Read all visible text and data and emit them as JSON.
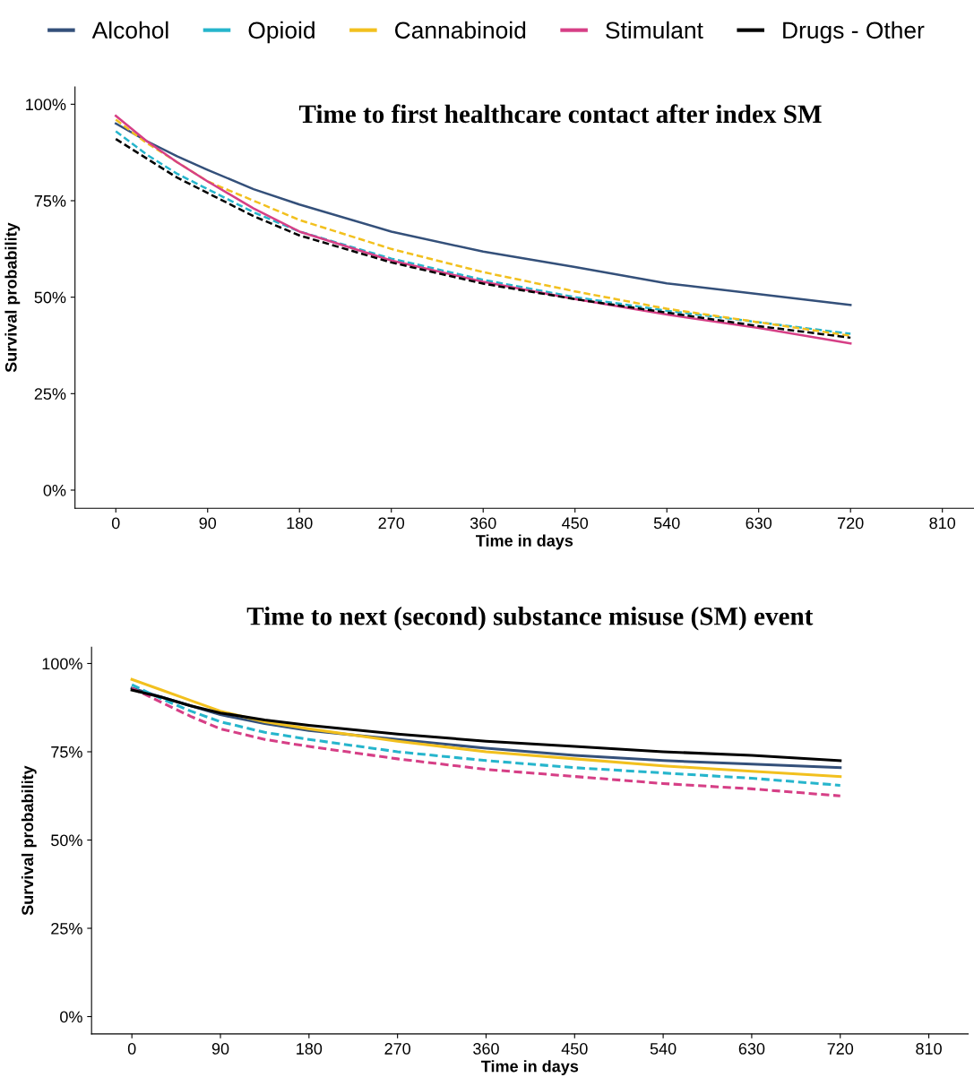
{
  "chart_data": [
    {
      "type": "line",
      "title": "Time to first healthcare contact after index SM",
      "xlabel": "Time in days",
      "ylabel": "Survival probability",
      "legend": "top",
      "grid": false,
      "marker": "none",
      "x": [
        0,
        30,
        60,
        90,
        135,
        180,
        270,
        360,
        450,
        540,
        630,
        720
      ],
      "xlim": [
        -40,
        841
      ],
      "xticks": [
        0,
        90,
        180,
        270,
        360,
        450,
        540,
        630,
        720,
        810
      ],
      "ylim": [
        -4.7,
        104.5
      ],
      "yticks": [
        {
          "value": 0,
          "label": "0%"
        },
        {
          "value": 25,
          "label": "25%"
        },
        {
          "value": 50,
          "label": "50%"
        },
        {
          "value": 75,
          "label": "75%"
        },
        {
          "value": 100,
          "label": "100%"
        }
      ],
      "series": [
        {
          "name": "Alcohol",
          "color": "#34507a",
          "line_style": "solid",
          "values": [
            95,
            90.5,
            86.5,
            83,
            78,
            74,
            67,
            61.8,
            57.8,
            53.6,
            50.8,
            48
          ]
        },
        {
          "name": "Opioid",
          "color": "#26b5cc",
          "line_style": "dashed",
          "values": [
            93,
            87,
            82,
            78,
            72,
            67,
            60,
            54.5,
            50,
            46.5,
            43.5,
            40.5
          ]
        },
        {
          "name": "Cannabinoid",
          "color": "#f2c01e",
          "line_style": "dashed",
          "values": [
            96,
            90,
            85,
            80,
            75,
            70,
            62.5,
            56.5,
            51.5,
            47,
            43.5,
            40
          ]
        },
        {
          "name": "Stimulant",
          "color": "#d63f86",
          "line_style": "solid",
          "values": [
            97,
            90.5,
            85,
            80,
            73,
            67,
            59.5,
            54,
            49.5,
            45.5,
            42,
            38
          ]
        },
        {
          "name": "Drugs - Other",
          "color": "#000000",
          "line_style": "dashed",
          "values": [
            91,
            86,
            81,
            77,
            71,
            66,
            59,
            53.5,
            49.5,
            46,
            42.5,
            39.5
          ]
        }
      ]
    },
    {
      "type": "line",
      "title": "Time to next (second) substance misuse (SM) event",
      "xlabel": "Time in days",
      "ylabel": "Survival probability",
      "legend": false,
      "grid": false,
      "marker": "none",
      "x": [
        0,
        30,
        60,
        90,
        135,
        180,
        270,
        360,
        450,
        540,
        630,
        720
      ],
      "xlim": [
        -41,
        850
      ],
      "xticks": [
        0,
        90,
        180,
        270,
        360,
        450,
        540,
        630,
        720,
        810
      ],
      "ylim": [
        -4.9,
        104.6
      ],
      "yticks": [
        {
          "value": 0,
          "label": "0%"
        },
        {
          "value": 25,
          "label": "25%"
        },
        {
          "value": 50,
          "label": "50%"
        },
        {
          "value": 75,
          "label": "75%"
        },
        {
          "value": 100,
          "label": "100%"
        }
      ],
      "series": [
        {
          "color": "#34507a",
          "line_style": "solid",
          "values": [
            93,
            90.5,
            88,
            85.5,
            83,
            81,
            78.5,
            76,
            74,
            72.5,
            71.5,
            70.5
          ]
        },
        {
          "color": "#26b5cc",
          "line_style": "dashed",
          "values": [
            94,
            90,
            86.5,
            83.5,
            80.5,
            78.5,
            75,
            72.5,
            70.5,
            69,
            67.5,
            65.5
          ]
        },
        {
          "color": "#f2c01e",
          "line_style": "solid",
          "values": [
            95.5,
            92.5,
            89.5,
            86.5,
            83.5,
            81.5,
            78,
            75,
            73,
            71,
            69.5,
            68
          ]
        },
        {
          "color": "#d63f86",
          "line_style": "dashed",
          "values": [
            93,
            89,
            85,
            81.5,
            78.5,
            76.5,
            73,
            70,
            68,
            66,
            64.5,
            62.5
          ]
        },
        {
          "color": "#000000",
          "line_style": "solid",
          "values": [
            92.5,
            90.5,
            88,
            86,
            84,
            82.5,
            80,
            78,
            76.5,
            75,
            74,
            72.5
          ]
        }
      ]
    }
  ]
}
